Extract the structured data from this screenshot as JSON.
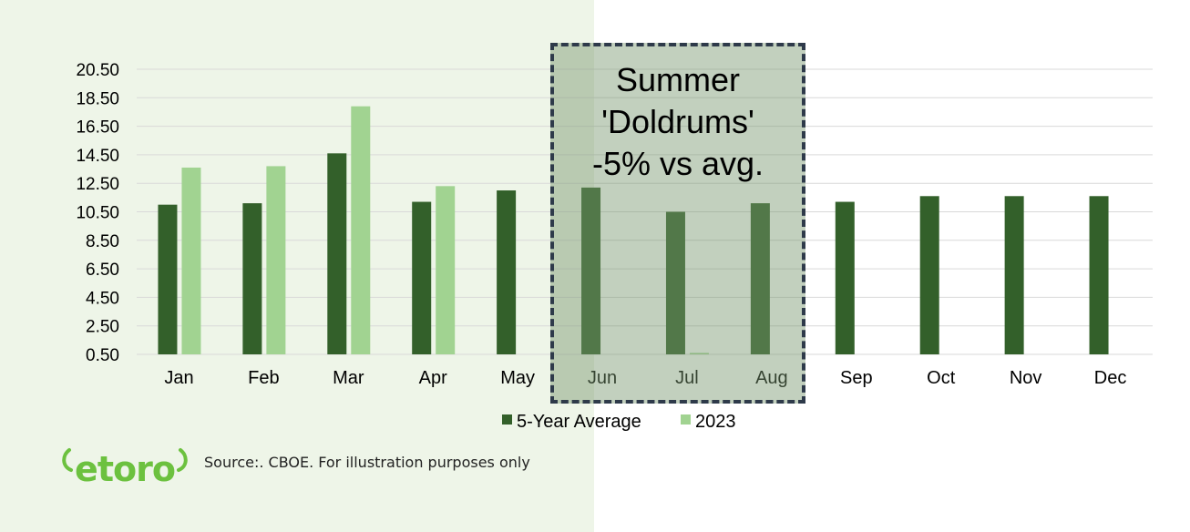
{
  "chart_data": {
    "type": "bar",
    "categories": [
      "Jan",
      "Feb",
      "Mar",
      "Apr",
      "May",
      "Jun",
      "Jul",
      "Aug",
      "Sep",
      "Oct",
      "Nov",
      "Dec"
    ],
    "series": [
      {
        "name": "5-Year Average",
        "color": "#33602a",
        "values": [
          11.0,
          11.1,
          14.6,
          11.2,
          12.0,
          12.2,
          10.5,
          11.1,
          11.2,
          11.6,
          11.6,
          11.6
        ]
      },
      {
        "name": "2023",
        "color": "#a1d391",
        "values": [
          13.6,
          13.7,
          17.9,
          12.3,
          null,
          null,
          0.6,
          null,
          null,
          null,
          null,
          null
        ]
      }
    ],
    "yticks": [
      "0.50",
      "2.50",
      "4.50",
      "6.50",
      "8.50",
      "10.50",
      "12.50",
      "14.50",
      "16.50",
      "18.50",
      "20.50"
    ],
    "ylim": [
      0.5,
      20.5
    ],
    "grid": true,
    "legend_position": "bottom"
  },
  "callout": {
    "lines": [
      "Summer",
      "'Doldrums'",
      "-5% vs avg."
    ]
  },
  "footer": {
    "logo_text": "etoro",
    "source": "Source:. CBOE. For illustration purposes only"
  },
  "colors": {
    "left_panel": "#eef5e8",
    "brand_green": "#6cc13f"
  }
}
